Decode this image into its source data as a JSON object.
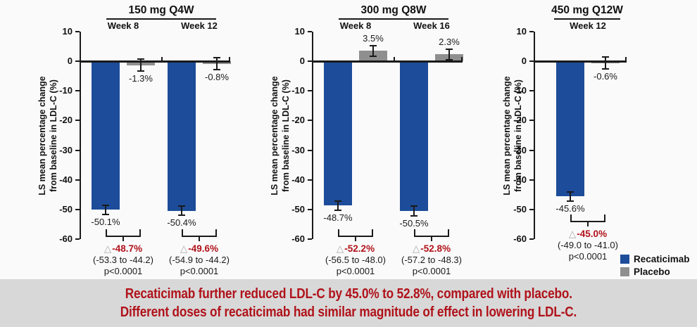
{
  "banner": {
    "bg": "#d8d8d8",
    "color": "#b0121a",
    "line1": "Recaticimab further reduced LDL-C by 45.0% to 52.8%, compared with placebo.",
    "line2": "Different doses of recaticimab had similar magnitude of effect in lowering LDL-C."
  },
  "legend": {
    "items": [
      {
        "label": "Recaticimab",
        "color": "#1d4c9a"
      },
      {
        "label": "Placebo",
        "color": "#8f8f8f"
      }
    ]
  },
  "chart_data": {
    "type": "bar",
    "ylabel_line1": "LS mean percentage change",
    "ylabel_line2": "from baseline in LDL-C (%)",
    "ylim": [
      -60,
      10
    ],
    "yticks": [
      10,
      0,
      -10,
      -20,
      -30,
      -40,
      -50,
      -60
    ],
    "grid": false,
    "legend_position": "bottom-right",
    "series_names": [
      "Recaticimab",
      "Placebo"
    ],
    "colors": {
      "recaticimab": "#1d4c9a",
      "placebo": "#8f8f8f",
      "diff_text": "#b0121a",
      "axis": "#1a1a1a"
    },
    "delta_symbol": "△",
    "panels": [
      {
        "title": "150 mg Q4W",
        "groups": [
          {
            "week": "Week 8",
            "recaticimab": {
              "value": -50.1,
              "label": "-50.1%",
              "err": 1.6
            },
            "placebo": {
              "value": -1.3,
              "label": "-1.3%",
              "err": 2.0
            },
            "diff": {
              "delta": "-48.7%",
              "ci": "(-53.3 to -44.2)",
              "p": "p<0.0001"
            }
          },
          {
            "week": "Week 12",
            "recaticimab": {
              "value": -50.4,
              "label": "-50.4%",
              "err": 1.6
            },
            "placebo": {
              "value": -0.8,
              "label": "-0.8%",
              "err": 2.0
            },
            "diff": {
              "delta": "-49.6%",
              "ci": "(-54.9 to -44.2)",
              "p": "p<0.0001"
            }
          }
        ]
      },
      {
        "title": "300 mg Q8W",
        "groups": [
          {
            "week": "Week 8",
            "recaticimab": {
              "value": -48.7,
              "label": "-48.7%",
              "err": 1.6
            },
            "placebo": {
              "value": 3.5,
              "label": "3.5%",
              "err": 1.8
            },
            "diff": {
              "delta": "-52.2%",
              "ci": "(-56.5 to -48.0)",
              "p": "p<0.0001"
            }
          },
          {
            "week": "Week 16",
            "recaticimab": {
              "value": -50.5,
              "label": "-50.5%",
              "err": 1.6
            },
            "placebo": {
              "value": 2.3,
              "label": "2.3%",
              "err": 1.8
            },
            "diff": {
              "delta": "-52.8%",
              "ci": "(-57.2 to -48.3)",
              "p": "p<0.0001"
            }
          }
        ]
      },
      {
        "title": "450 mg Q12W",
        "groups": [
          {
            "week": "Week 12",
            "recaticimab": {
              "value": -45.6,
              "label": "-45.6%",
              "err": 1.6
            },
            "placebo": {
              "value": -0.6,
              "label": "-0.6%",
              "err": 2.0
            },
            "diff": {
              "delta": "-45.0%",
              "ci": "(-49.0 to -41.0)",
              "p": "p<0.0001"
            }
          }
        ]
      }
    ]
  }
}
